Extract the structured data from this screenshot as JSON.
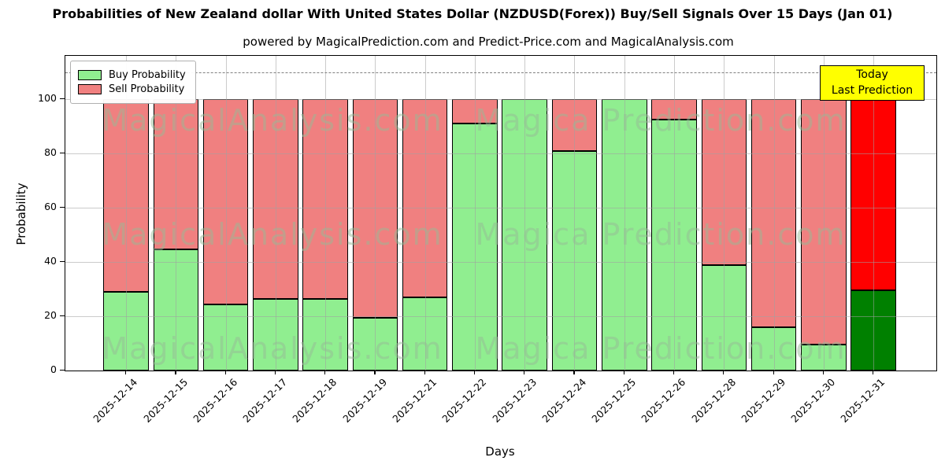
{
  "header": {
    "title": "Probabilities of New Zealand dollar With United States Dollar (NZDUSD(Forex)) Buy/Sell Signals Over 15 Days (Jan 01)",
    "subtitle": "powered by MagicalPrediction.com and Predict-Price.com and MagicalAnalysis.com"
  },
  "legend": {
    "items": [
      {
        "label": "Buy Probability",
        "color": "#90EE90"
      },
      {
        "label": "Sell Probability",
        "color": "#F08080"
      }
    ]
  },
  "annotation": {
    "today_line1": "Today",
    "today_line2": "Last Prediction",
    "bg_color": "#FFFF00"
  },
  "axes": {
    "xlabel": "Days",
    "ylabel": "Probability",
    "yticks": [
      "0",
      "20",
      "40",
      "60",
      "80",
      "100"
    ],
    "ylim": [
      0,
      116
    ],
    "dashed_guide_y": 110,
    "grid": "on"
  },
  "watermarks": {
    "left": "MagicalAnalysis.com",
    "right": "Magica Prediction.com"
  },
  "colors": {
    "buy": "#90EE90",
    "sell": "#F08080",
    "today_buy": "#008000",
    "today_sell": "#FF0000",
    "bar_edge": "#000000",
    "dashed_guide": "#808080",
    "annotation_bg": "#FFFF00"
  },
  "chart_data": {
    "type": "bar",
    "stacked": true,
    "title": "Probabilities of New Zealand dollar With United States Dollar (NZDUSD(Forex)) Buy/Sell Signals Over 15 Days (Jan 01)",
    "xlabel": "Days",
    "ylabel": "Probability",
    "ylim": [
      0,
      116
    ],
    "legend_position": "upper left",
    "grid": true,
    "categories": [
      "2025-12-14",
      "2025-12-15",
      "2025-12-16",
      "2025-12-17",
      "2025-12-18",
      "2025-12-19",
      "2025-12-21",
      "2025-12-22",
      "2025-12-23",
      "2025-12-24",
      "2025-12-25",
      "2025-12-26",
      "2025-12-28",
      "2025-12-29",
      "2025-12-30",
      "2025-12-31"
    ],
    "series": [
      {
        "name": "Buy Probability",
        "values": [
          29,
          44.8,
          24.3,
          26.5,
          26.5,
          19.5,
          27,
          91,
          100,
          81,
          100,
          92.5,
          39,
          16,
          9.5,
          29.5
        ]
      },
      {
        "name": "Sell Probability",
        "values": [
          71,
          55.2,
          75.7,
          73.5,
          73.5,
          80.5,
          73,
          9,
          0,
          19,
          0,
          7.5,
          61,
          84,
          90.5,
          70.5
        ]
      }
    ],
    "today_index": 15,
    "today_annotation": "Today Last Prediction",
    "dashed_guide_y": 110
  }
}
